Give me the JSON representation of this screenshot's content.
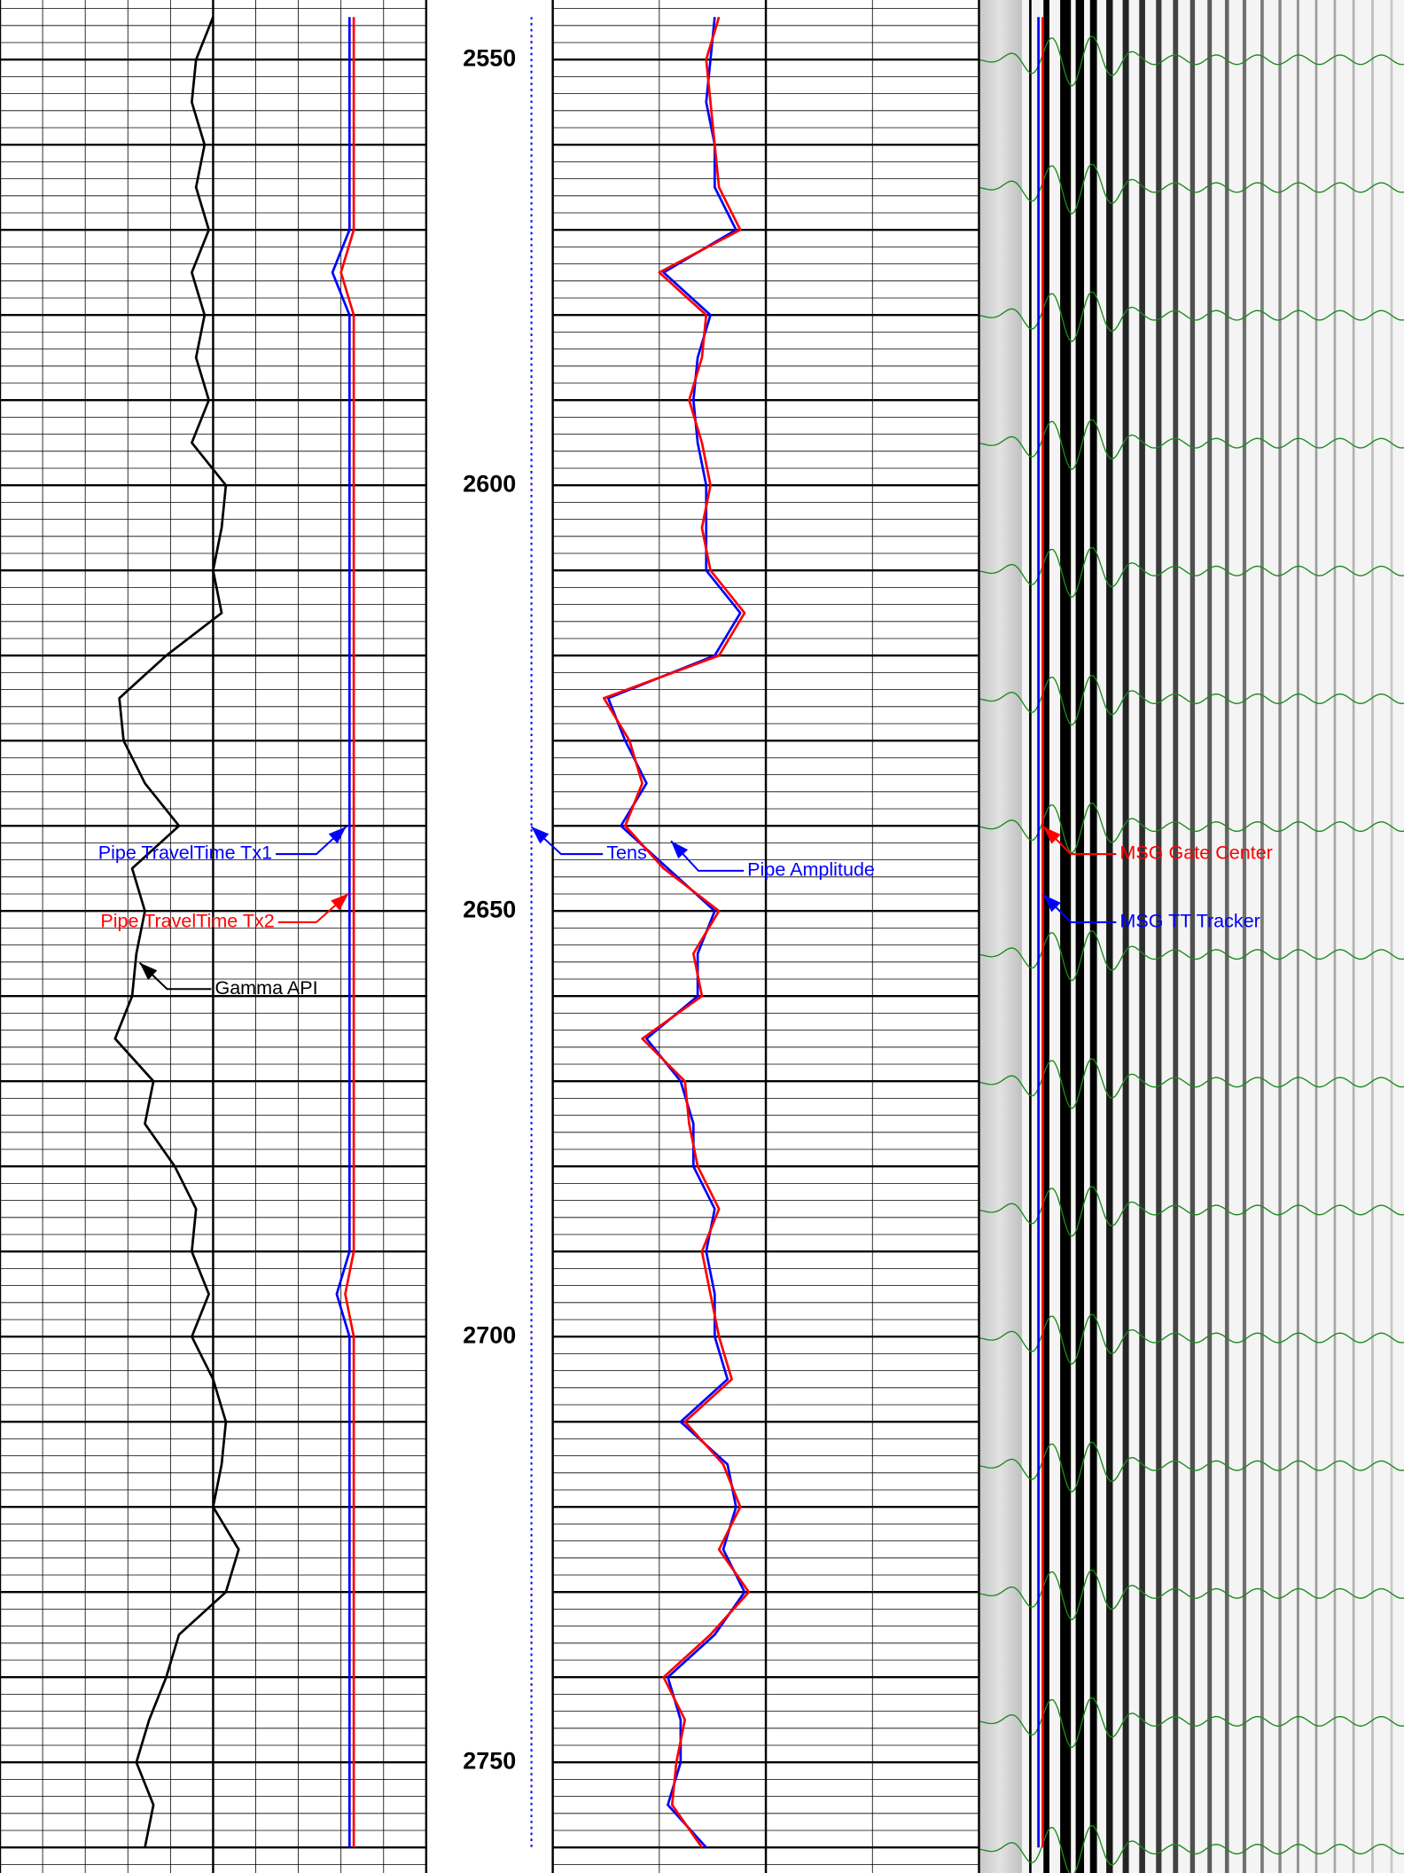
{
  "chart_data": [
    {
      "type": "line",
      "ylim": [
        2543,
        2763
      ],
      "yticks": [
        2550,
        2600,
        2650,
        2700,
        2750
      ],
      "xlim": [
        0,
        10
      ],
      "xgrid_step": 1,
      "grid_major_step": 10,
      "grid_minor_step": 2,
      "x": [
        2545,
        2550,
        2555,
        2560,
        2565,
        2570,
        2575,
        2580,
        2585,
        2590,
        2595,
        2600,
        2605,
        2610,
        2615,
        2620,
        2625,
        2630,
        2635,
        2640,
        2645,
        2650,
        2655,
        2660,
        2665,
        2670,
        2675,
        2680,
        2685,
        2690,
        2695,
        2700,
        2705,
        2710,
        2715,
        2720,
        2725,
        2730,
        2735,
        2740,
        2745,
        2750,
        2755,
        2760
      ],
      "series": [
        {
          "name": "Gamma API",
          "color": "#000000",
          "values": [
            5.0,
            4.6,
            4.5,
            4.8,
            4.6,
            4.9,
            4.5,
            4.8,
            4.6,
            4.9,
            4.5,
            5.3,
            5.2,
            5.0,
            5.2,
            3.9,
            2.8,
            2.9,
            3.4,
            4.2,
            3.1,
            3.4,
            3.2,
            3.1,
            2.7,
            3.6,
            3.4,
            4.1,
            4.6,
            4.5,
            4.9,
            4.5,
            5.0,
            5.3,
            5.2,
            5.0,
            5.6,
            5.3,
            4.2,
            3.9,
            3.5,
            3.2,
            3.6,
            3.4
          ]
        },
        {
          "name": "Pipe TravelTime Tx1",
          "color": "#0000ff",
          "values": [
            8.2,
            8.2,
            8.2,
            8.2,
            8.2,
            8.2,
            7.8,
            8.2,
            8.2,
            8.2,
            8.2,
            8.2,
            8.2,
            8.2,
            8.2,
            8.2,
            8.2,
            8.2,
            8.2,
            8.2,
            8.2,
            8.2,
            8.2,
            8.2,
            8.2,
            8.2,
            8.2,
            8.2,
            8.2,
            8.2,
            7.9,
            8.2,
            8.2,
            8.2,
            8.2,
            8.2,
            8.2,
            8.2,
            8.2,
            8.2,
            8.2,
            8.2,
            8.2,
            8.2
          ]
        },
        {
          "name": "Pipe TravelTime Tx2",
          "color": "#ff0000",
          "values": [
            8.3,
            8.3,
            8.3,
            8.3,
            8.3,
            8.3,
            8.0,
            8.3,
            8.3,
            8.3,
            8.3,
            8.3,
            8.3,
            8.3,
            8.3,
            8.3,
            8.3,
            8.3,
            8.3,
            8.3,
            8.3,
            8.3,
            8.3,
            8.3,
            8.3,
            8.3,
            8.3,
            8.3,
            8.3,
            8.3,
            8.1,
            8.3,
            8.3,
            8.3,
            8.3,
            8.3,
            8.3,
            8.3,
            8.3,
            8.3,
            8.3,
            8.3,
            8.3,
            8.3
          ]
        }
      ]
    },
    {
      "type": "line",
      "xlim": [
        0,
        10
      ],
      "xgrid_step": 2.5,
      "grid_major_step": 10,
      "grid_minor_step": 2,
      "x": [
        2545,
        2550,
        2555,
        2560,
        2565,
        2570,
        2575,
        2580,
        2585,
        2590,
        2595,
        2600,
        2605,
        2610,
        2615,
        2620,
        2625,
        2630,
        2635,
        2640,
        2645,
        2650,
        2655,
        2660,
        2665,
        2670,
        2675,
        2680,
        2685,
        2690,
        2695,
        2700,
        2705,
        2710,
        2715,
        2720,
        2725,
        2730,
        2735,
        2740,
        2745,
        2750,
        2755,
        2760
      ],
      "series": [
        {
          "name": "Tens",
          "color": "#0000ff",
          "dashed": true,
          "values": [
            -0.5,
            -0.5,
            -0.5,
            -0.5,
            -0.5,
            -0.5,
            -0.5,
            -0.5,
            -0.5,
            -0.5,
            -0.5,
            -0.5,
            -0.5,
            -0.5,
            -0.5,
            -0.5,
            -0.5,
            -0.5,
            -0.5,
            -0.5,
            -0.5,
            -0.5,
            -0.5,
            -0.5,
            -0.5,
            -0.5,
            -0.5,
            -0.5,
            -0.5,
            -0.5,
            -0.5,
            -0.5,
            -0.5,
            -0.5,
            -0.5,
            -0.5,
            -0.5,
            -0.5,
            -0.5,
            -0.5,
            -0.5,
            -0.5,
            -0.5,
            -0.5
          ]
        },
        {
          "name": "Pipe Amplitude",
          "color": "#0000ff",
          "values": [
            3.8,
            3.7,
            3.6,
            3.8,
            3.8,
            4.3,
            2.6,
            3.7,
            3.4,
            3.3,
            3.4,
            3.6,
            3.6,
            3.6,
            4.4,
            3.8,
            1.3,
            1.7,
            2.2,
            1.6,
            2.7,
            3.8,
            3.4,
            3.4,
            2.2,
            3.0,
            3.3,
            3.3,
            3.8,
            3.6,
            3.8,
            3.8,
            4.1,
            3.0,
            4.1,
            4.3,
            4.0,
            4.5,
            3.8,
            2.7,
            3.0,
            3.0,
            2.7,
            3.6
          ]
        },
        {
          "color": "#ff0000",
          "values": [
            3.9,
            3.6,
            3.7,
            3.8,
            3.9,
            4.4,
            2.5,
            3.6,
            3.5,
            3.2,
            3.5,
            3.7,
            3.5,
            3.7,
            4.5,
            3.9,
            1.2,
            1.8,
            2.1,
            1.7,
            2.6,
            3.9,
            3.3,
            3.5,
            2.1,
            3.1,
            3.2,
            3.4,
            3.9,
            3.5,
            3.7,
            3.9,
            4.2,
            3.1,
            4.0,
            4.4,
            3.9,
            4.6,
            3.7,
            2.6,
            3.1,
            2.9,
            2.8,
            3.5
          ]
        }
      ]
    },
    {
      "type": "image-track",
      "xlim": [
        0,
        10
      ],
      "x": [
        2545,
        2550,
        2555,
        2560,
        2565,
        2570,
        2575,
        2580,
        2585,
        2590,
        2595,
        2600,
        2605,
        2610,
        2615,
        2620,
        2625,
        2630,
        2635,
        2640,
        2645,
        2650,
        2655,
        2660,
        2665,
        2670,
        2675,
        2680,
        2685,
        2690,
        2695,
        2700,
        2705,
        2710,
        2715,
        2720,
        2725,
        2730,
        2735,
        2740,
        2745,
        2750,
        2755,
        2760
      ],
      "series": [
        {
          "name": "MSG Gate Center",
          "color": "#ff0000",
          "values": [
            1.5,
            1.5,
            1.5,
            1.5,
            1.5,
            1.5,
            1.5,
            1.5,
            1.5,
            1.5,
            1.5,
            1.5,
            1.5,
            1.5,
            1.5,
            1.5,
            1.5,
            1.5,
            1.5,
            1.5,
            1.5,
            1.5,
            1.5,
            1.5,
            1.5,
            1.5,
            1.5,
            1.5,
            1.5,
            1.5,
            1.5,
            1.5,
            1.5,
            1.5,
            1.5,
            1.5,
            1.5,
            1.5,
            1.5,
            1.5,
            1.5,
            1.5,
            1.5,
            1.5
          ]
        },
        {
          "name": "MSG TT Tracker",
          "color": "#0000ff",
          "values": [
            1.4,
            1.4,
            1.4,
            1.4,
            1.4,
            1.4,
            1.4,
            1.4,
            1.4,
            1.4,
            1.4,
            1.4,
            1.4,
            1.4,
            1.4,
            1.4,
            1.4,
            1.4,
            1.4,
            1.4,
            1.4,
            1.4,
            1.4,
            1.4,
            1.4,
            1.4,
            1.4,
            1.4,
            1.4,
            1.4,
            1.4,
            1.4,
            1.4,
            1.4,
            1.4,
            1.4,
            1.4,
            1.4,
            1.4,
            1.4,
            1.4,
            1.4,
            1.4,
            1.4
          ]
        }
      ]
    }
  ]
}
